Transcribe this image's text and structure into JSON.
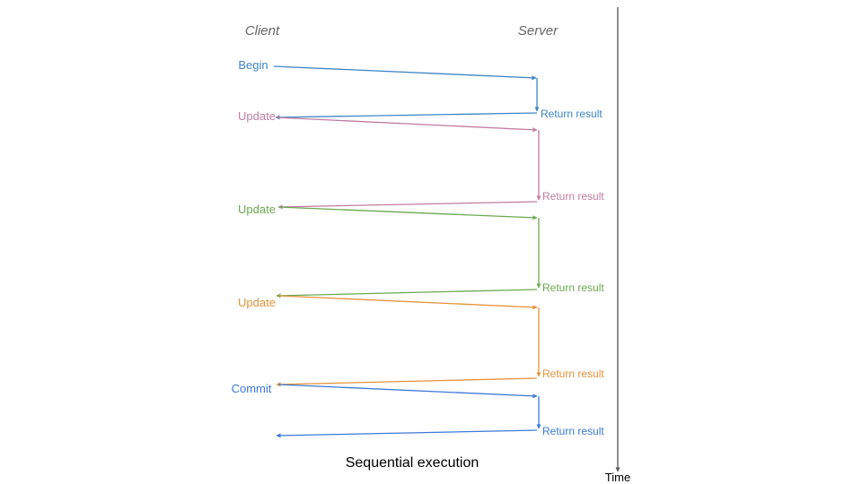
{
  "headers": {
    "client": "Client",
    "server": "Server"
  },
  "time_label": "Time",
  "caption": "Sequential execution",
  "steps": [
    {
      "request": "Begin",
      "response": "Return result",
      "color": "#3d85c6"
    },
    {
      "request": "Update",
      "response": "Return result",
      "color": "#c27ba0"
    },
    {
      "request": "Update",
      "response": "Return result",
      "color": "#6aa84f"
    },
    {
      "request": "Update",
      "response": "Return result",
      "color": "#e69138"
    },
    {
      "request": "Commit",
      "response": "Return result",
      "color": "#3c78d8"
    }
  ]
}
